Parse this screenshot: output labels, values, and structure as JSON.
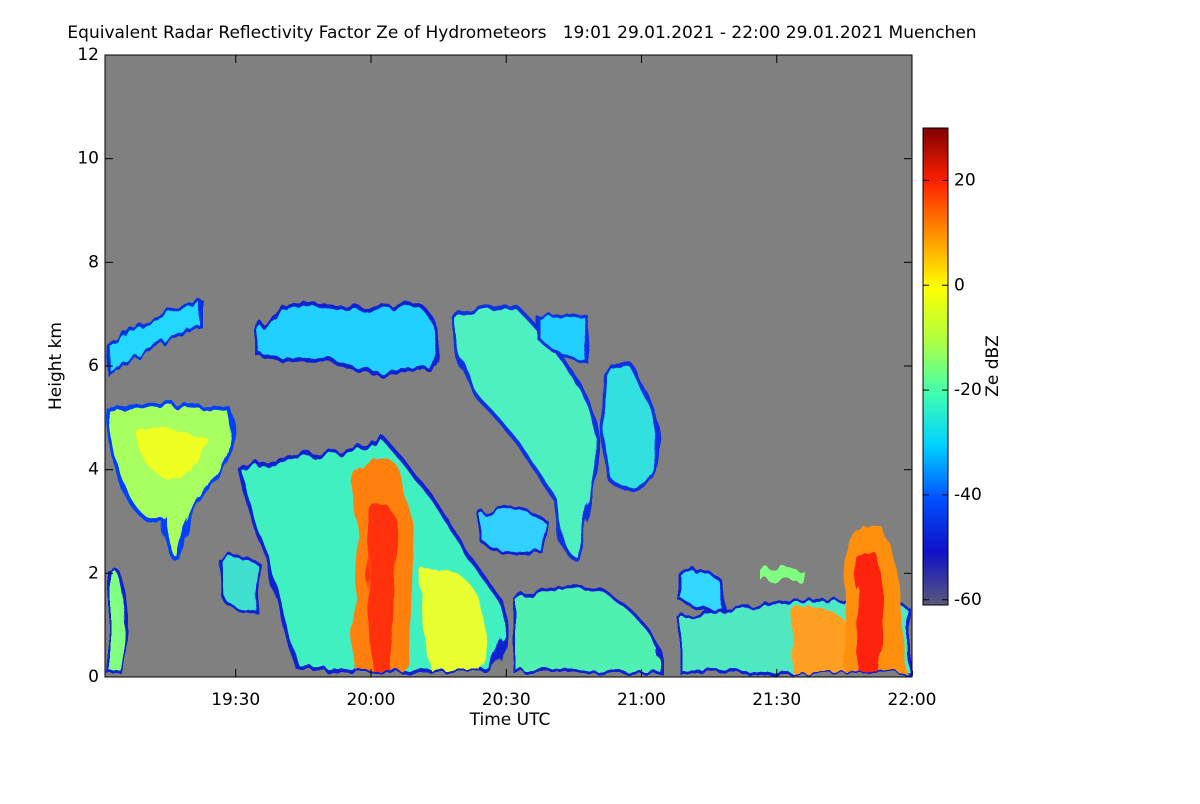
{
  "chart_data": {
    "type": "heatmap",
    "title": "Equivalent Radar Reflectivity Factor Ze of Hydrometeors   19:01 29.01.2021 - 22:00 29.01.2021 Muenchen",
    "x_label": "Time UTC",
    "y_label": "Height km",
    "colorbar_label": "Ze dBZ",
    "xlim": [
      1141,
      1320
    ],
    "xticks": [
      {
        "value": 1170,
        "label": "19:30"
      },
      {
        "value": 1200,
        "label": "20:00"
      },
      {
        "value": 1230,
        "label": "20:30"
      },
      {
        "value": 1260,
        "label": "21:00"
      },
      {
        "value": 1290,
        "label": "21:30"
      },
      {
        "value": 1320,
        "label": "22:00"
      }
    ],
    "ylim": [
      0,
      12
    ],
    "yticks": [
      0,
      2,
      4,
      6,
      8,
      10,
      12
    ],
    "clim": [
      -61,
      30
    ],
    "cticks": [
      -60,
      -40,
      -20,
      0,
      20
    ],
    "colormap": [
      "#5a5a7a",
      "#1010c8",
      "#0050ff",
      "#00d0ff",
      "#40ffb0",
      "#b0ff40",
      "#ffff00",
      "#ff9000",
      "#ff2000",
      "#800000"
    ],
    "background": "#808080"
  }
}
